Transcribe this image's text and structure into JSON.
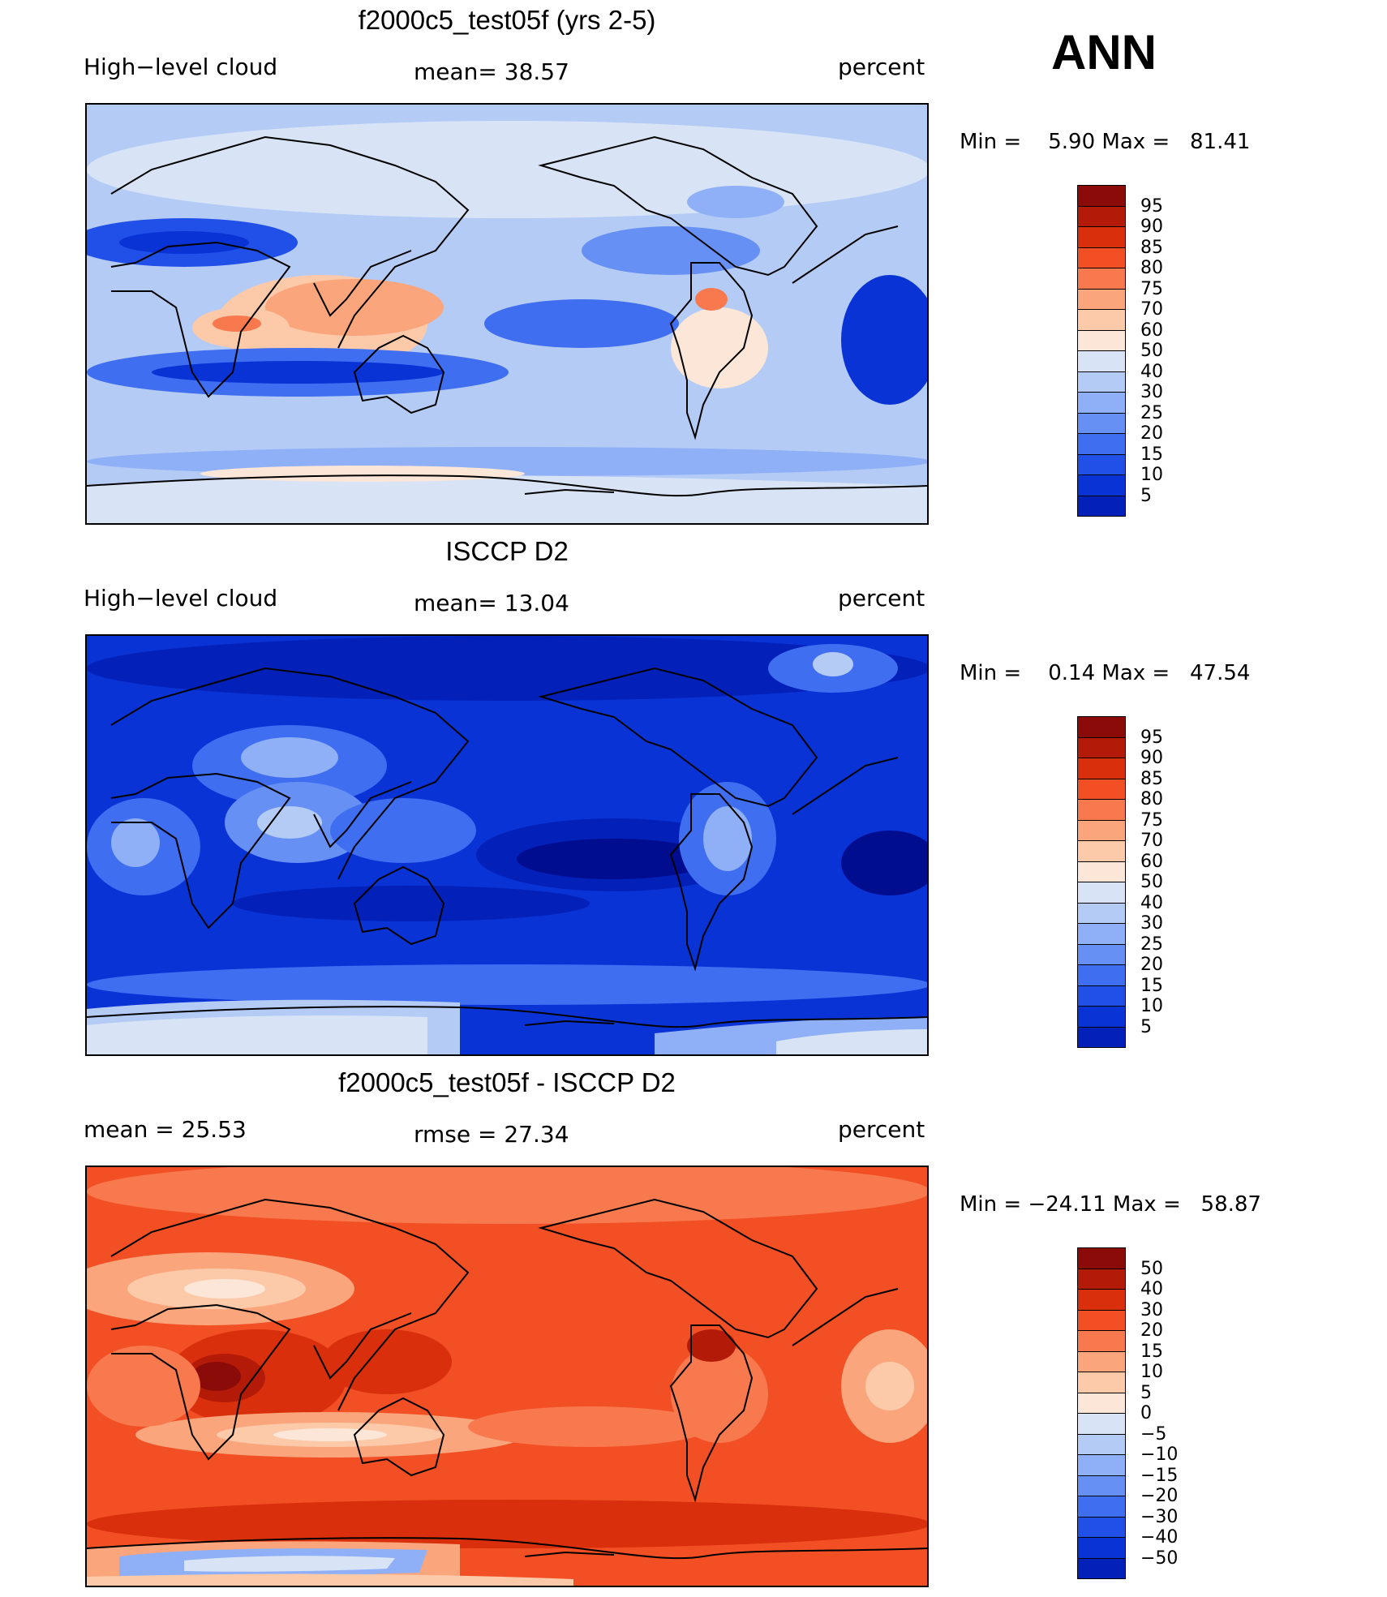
{
  "season": "ANN",
  "palette": {
    "levels": [
      "#000d8f",
      "#0320b8",
      "#0a33d6",
      "#2050e8",
      "#3f6ef0",
      "#6790f4",
      "#8fb0f6",
      "#b4cbf6",
      "#d8e4f6",
      "#fbe6d8",
      "#fccaa9",
      "#fba57d",
      "#f9794f",
      "#f24f25",
      "#d92f0c",
      "#b31b08",
      "#8a0b07"
    ],
    "outline": "#000000"
  },
  "panels": [
    {
      "title": "f2000c5_test05f (yrs 2-5)",
      "left_label": "High−level cloud",
      "mid_label": "mean=  38.57",
      "right_label": "percent",
      "min_max": "Min =    5.90 Max =   81.41",
      "colorbar_ticks": [
        "95",
        "90",
        "85",
        "80",
        "75",
        "70",
        "60",
        "50",
        "40",
        "30",
        "25",
        "20",
        "15",
        "10",
        "5"
      ]
    },
    {
      "title": "ISCCP D2",
      "left_label": "High−level cloud",
      "mid_label": "mean=  13.04",
      "right_label": "percent",
      "min_max": "Min =    0.14 Max =   47.54",
      "colorbar_ticks": [
        "95",
        "90",
        "85",
        "80",
        "75",
        "70",
        "60",
        "50",
        "40",
        "30",
        "25",
        "20",
        "15",
        "10",
        "5"
      ]
    },
    {
      "title": "f2000c5_test05f - ISCCP D2",
      "left_label": "mean =   25.53",
      "mid_label": "rmse =   27.34",
      "right_label": "percent",
      "min_max": "Min = −24.11 Max =   58.87",
      "colorbar_ticks": [
        "50",
        "40",
        "30",
        "20",
        "15",
        "10",
        "5",
        "0",
        "−5",
        "−10",
        "−15",
        "−20",
        "−30",
        "−40",
        "−50"
      ]
    }
  ],
  "chart_data": [
    {
      "type": "heatmap",
      "title": "f2000c5_test05f (yrs 2-5)",
      "field": "High−level cloud",
      "units": "percent",
      "mean": 38.57,
      "min": 5.9,
      "max": 81.41,
      "contour_levels": [
        5,
        10,
        15,
        20,
        25,
        30,
        40,
        50,
        60,
        70,
        75,
        80,
        85,
        90,
        95
      ]
    },
    {
      "type": "heatmap",
      "title": "ISCCP D2",
      "field": "High−level cloud",
      "units": "percent",
      "mean": 13.04,
      "min": 0.14,
      "max": 47.54,
      "contour_levels": [
        5,
        10,
        15,
        20,
        25,
        30,
        40,
        50,
        60,
        70,
        75,
        80,
        85,
        90,
        95
      ]
    },
    {
      "type": "heatmap",
      "title": "f2000c5_test05f - ISCCP D2",
      "units": "percent",
      "mean": 25.53,
      "rmse": 27.34,
      "min": -24.11,
      "max": 58.87,
      "contour_levels": [
        -50,
        -40,
        -30,
        -20,
        -15,
        -10,
        -5,
        0,
        5,
        10,
        15,
        20,
        30,
        40,
        50
      ]
    }
  ]
}
